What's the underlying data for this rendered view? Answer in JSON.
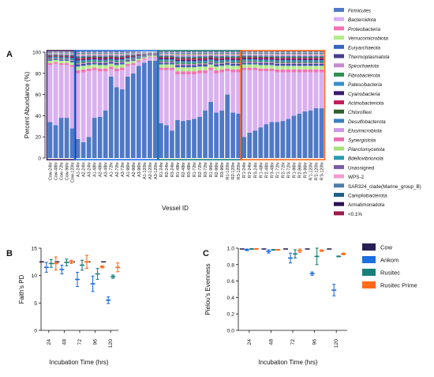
{
  "chart_data": [
    {
      "panel": "A",
      "type": "bar",
      "stacked": true,
      "xlabel": "Vessel ID",
      "ylabel": "Percent Abundance (%)",
      "ylim": [
        0,
        100
      ],
      "yticks": [
        "0",
        "20",
        "40",
        "60",
        "80",
        "100"
      ],
      "categories": [
        "Cow-24hr",
        "Cow-48hr",
        "Cow-72hr",
        "Cow-96hr",
        "Cow-120hr",
        "A1-24hr",
        "A2-24hr",
        "A3-24hr",
        "A1-48hr",
        "A2-48hr",
        "A3-48hr",
        "A1-72hr",
        "A2-72hr",
        "A3-72hr",
        "A1-96hr",
        "A2-96hr",
        "A3-96hr",
        "A1-120hr",
        "A2-120hr",
        "A3-120hr",
        "R1-24hr",
        "R2-24hr",
        "R3-24hr",
        "R1-48hr",
        "R2-48hr",
        "R3-48hr",
        "R1-72hr",
        "R2-72hr",
        "R3-72hr",
        "R1-96hr",
        "R2-96hr",
        "R3-96hr",
        "R1-120hr",
        "R2-120hr",
        "R3-120hr",
        "R'1-24hr",
        "R'2-24hr",
        "R'3-24hr",
        "R'1-48hr",
        "R'2-48hr",
        "R'3-48hr",
        "R'1-72hr",
        "R'2-72hr",
        "R'3-72hr",
        "R'1-96hr",
        "R'2-96hr",
        "R'3-96hr",
        "R'1-120hr",
        "R'2-120hr",
        "R'3-120hr"
      ],
      "groups": [
        {
          "name": "Cow",
          "range": [
            0,
            4
          ],
          "color": "#3b1e5f"
        },
        {
          "name": "Ankom",
          "range": [
            5,
            19
          ],
          "color": "#1f6fe0"
        },
        {
          "name": "Rusitec",
          "range": [
            20,
            34
          ],
          "color": "#1a7f7a"
        },
        {
          "name": "Rusitec Prime",
          "range": [
            35,
            49
          ],
          "color": "#ff6a1a"
        }
      ],
      "firmicutes": [
        34,
        31,
        38,
        38,
        28,
        18,
        15,
        20,
        38,
        39,
        45,
        77,
        67,
        65,
        77,
        80,
        87,
        90,
        92,
        92,
        33,
        31,
        26,
        36,
        35,
        36,
        37,
        39,
        45,
        53,
        43,
        45,
        60,
        43,
        42,
        20,
        24,
        26,
        29,
        32,
        34,
        34,
        35,
        37,
        40,
        42,
        44,
        45,
        47,
        47
      ],
      "bacteroidota": [
        54,
        58,
        50,
        50,
        58,
        62,
        66,
        62,
        45,
        43,
        37,
        7,
        15,
        18,
        10,
        8,
        4,
        3,
        3,
        3,
        50,
        52,
        57,
        43,
        44,
        43,
        42,
        41,
        35,
        30,
        37,
        36,
        22,
        38,
        39,
        63,
        59,
        57,
        53,
        50,
        48,
        47,
        46,
        44,
        41,
        39,
        37,
        36,
        34,
        34
      ],
      "series": [
        {
          "name": "Firmicutes",
          "color": "#4f79c7"
        },
        {
          "name": "Bacteroidota",
          "color": "#d9b0f0"
        },
        {
          "name": "Proteobacteria",
          "color": "#f472b3"
        },
        {
          "name": "Verrucomicrobiota",
          "color": "#b4ea8a"
        },
        {
          "name": "Euryarchaeota",
          "color": "#3563bd"
        },
        {
          "name": "Thermoplasmatota",
          "color": "#4a3b8f"
        },
        {
          "name": "Spirochaetota",
          "color": "#c88ad1"
        },
        {
          "name": "Fibrobacterota",
          "color": "#2e8f4f"
        },
        {
          "name": "Patescibacteria",
          "color": "#3d8ec9"
        },
        {
          "name": "Cyanobacteria",
          "color": "#3a1a6e"
        },
        {
          "name": "Actinobacteriota",
          "color": "#c51c5b"
        },
        {
          "name": "Chloroflexi",
          "color": "#2f5f2f"
        },
        {
          "name": "Desulfobacterota",
          "color": "#3a7fc1"
        },
        {
          "name": "Elusimicrobiota",
          "color": "#cf98e8"
        },
        {
          "name": "Synergistota",
          "color": "#e86fb0"
        },
        {
          "name": "Planctomycetota",
          "color": "#a8e07c"
        },
        {
          "name": "Bdellovibrionota",
          "color": "#2a9ab0"
        },
        {
          "name": "Unassigned",
          "color": "#7c5aa6"
        },
        {
          "name": "WPS-2",
          "color": "#f39ad0"
        },
        {
          "name": "SAR324_clade(Marine_group_B)",
          "color": "#4d7ea8"
        },
        {
          "name": "Campilobacterota",
          "color": "#1d5f8a"
        },
        {
          "name": "Armatimonadota",
          "color": "#2b1055"
        },
        {
          "name": "<0.1%",
          "color": "#9b1c4b"
        }
      ]
    },
    {
      "panel": "B",
      "type": "scatter",
      "xlabel": "Incubation Time (hrs)",
      "ylabel": "Faith's PD",
      "categories": [
        "24",
        "48",
        "72",
        "96",
        "120"
      ],
      "ylim": [
        0,
        15
      ],
      "yticks": [
        "0",
        "5",
        "10",
        "15"
      ],
      "series": [
        {
          "name": "Cow",
          "color": "#2a1f55",
          "values": [
            12.5,
            12.5,
            12.5,
            12.5,
            12.5
          ],
          "err": [
            0,
            0,
            0,
            0,
            0
          ]
        },
        {
          "name": "Ankom",
          "color": "#1f6fe0",
          "values": [
            11.5,
            11.1,
            9.3,
            8.5,
            5.5
          ],
          "err": [
            0.9,
            0.8,
            1.3,
            1.4,
            0.6
          ]
        },
        {
          "name": "Rusitec",
          "color": "#1a7f7a",
          "values": [
            12.2,
            12.4,
            11.9,
            10.3,
            9.8
          ],
          "err": [
            0.7,
            0.6,
            0.9,
            1.0,
            0.3
          ]
        },
        {
          "name": "Rusitec Prime",
          "color": "#ff6a1a",
          "values": [
            12.2,
            12.5,
            12.5,
            11.6,
            11.5
          ],
          "err": [
            1.2,
            0.3,
            1.2,
            0.2,
            0.8
          ]
        }
      ]
    },
    {
      "panel": "C",
      "type": "scatter",
      "xlabel": "Incubation Time (hrs)",
      "ylabel": "Pielou's Evenness",
      "categories": [
        "24",
        "48",
        "72",
        "96",
        "120"
      ],
      "ylim": [
        0.0,
        1.0
      ],
      "yticks": [
        "0.0",
        "0.2",
        "0.4",
        "0.6",
        "0.8",
        "1.0"
      ],
      "series": [
        {
          "name": "Cow",
          "color": "#2a1f55",
          "values": [
            0.99,
            0.99,
            0.99,
            0.99,
            0.99
          ],
          "err": [
            0,
            0,
            0,
            0,
            0
          ]
        },
        {
          "name": "Ankom",
          "color": "#1f6fe0",
          "values": [
            0.98,
            0.96,
            0.88,
            0.69,
            0.49
          ],
          "err": [
            0.01,
            0.02,
            0.06,
            0.02,
            0.07
          ]
        },
        {
          "name": "Rusitec",
          "color": "#1a7f7a",
          "values": [
            0.99,
            0.98,
            0.93,
            0.9,
            0.9
          ],
          "err": [
            0.005,
            0.005,
            0.05,
            0.1,
            0.005
          ]
        },
        {
          "name": "Rusitec Prime",
          "color": "#ff6a1a",
          "values": [
            0.99,
            0.98,
            0.97,
            0.97,
            0.93
          ],
          "err": [
            0.005,
            0.005,
            0.02,
            0.01,
            0.01
          ]
        }
      ]
    }
  ],
  "panel_labels": {
    "a": "A",
    "b": "B",
    "c": "C"
  },
  "legend_bc": [
    {
      "name": "Cow",
      "color": "#2a1f55"
    },
    {
      "name": "Ankom",
      "color": "#1f6fe0"
    },
    {
      "name": "Rusitec",
      "color": "#1a7f7a"
    },
    {
      "name": "Rusitec Prime",
      "color": "#ff6a1a"
    }
  ]
}
